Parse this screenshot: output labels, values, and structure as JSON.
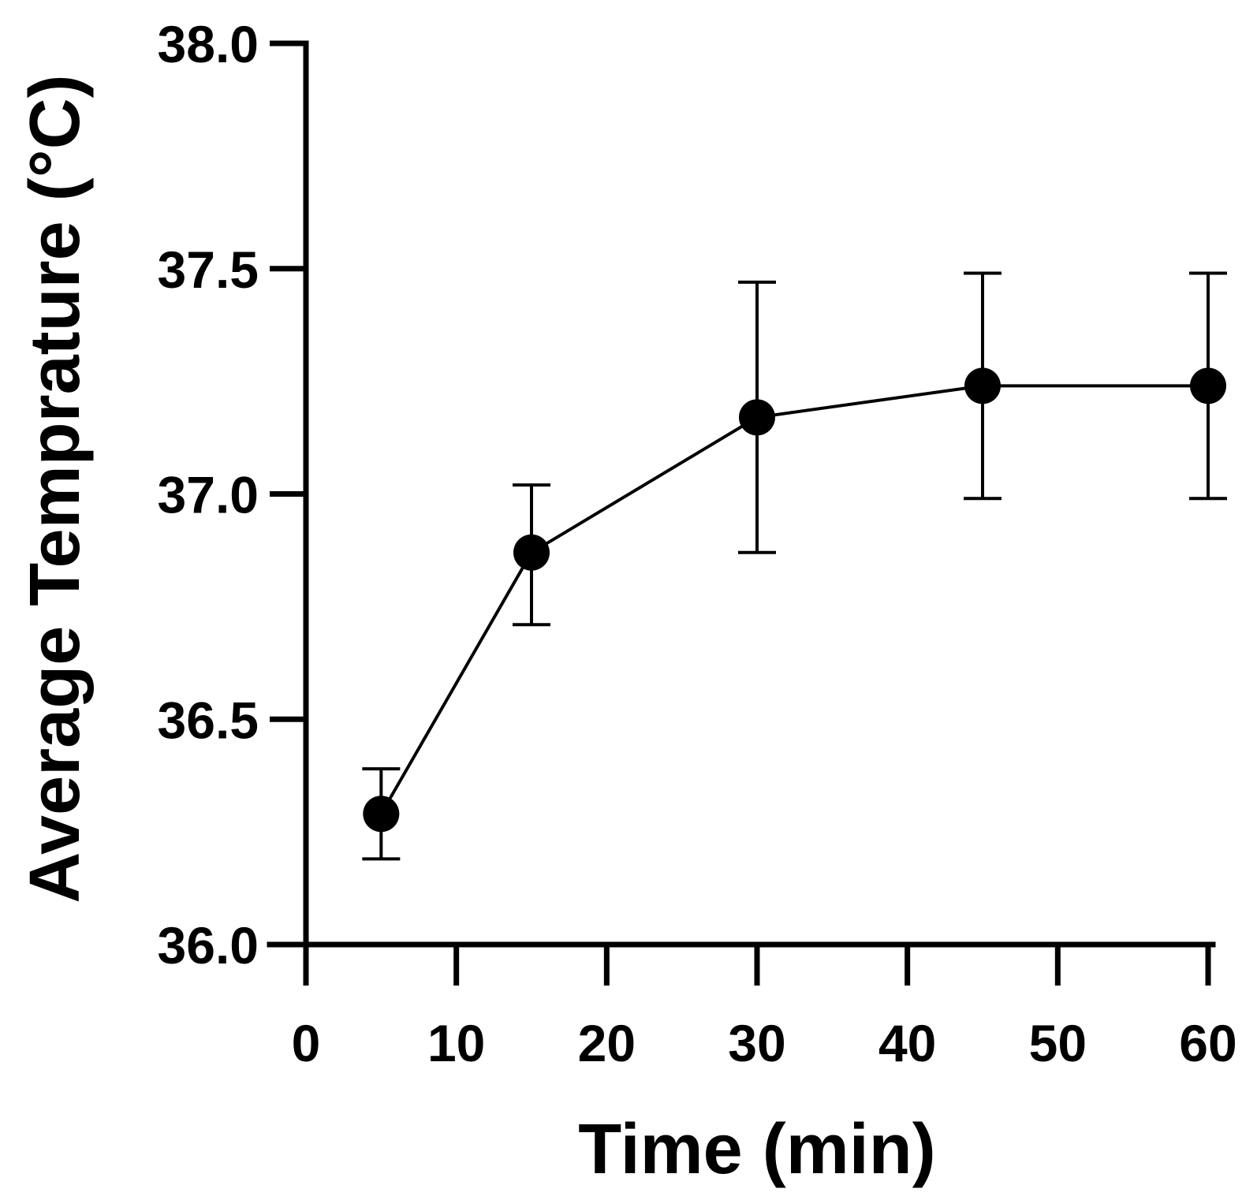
{
  "chart_data": {
    "type": "line",
    "title": "",
    "xlabel": "Time (min)",
    "ylabel": "Average Temprature (°C)",
    "xlim": [
      0,
      60
    ],
    "ylim": [
      36.0,
      38.0
    ],
    "x_ticks": [
      0,
      10,
      20,
      30,
      40,
      50,
      60
    ],
    "x_tick_labels": [
      "0",
      "10",
      "20",
      "30",
      "40",
      "50",
      "60"
    ],
    "y_ticks": [
      36.0,
      36.5,
      37.0,
      37.5,
      38.0
    ],
    "y_tick_labels": [
      "36.0",
      "36.5",
      "37.0",
      "37.5",
      "38.0"
    ],
    "grid": false,
    "legend": "none",
    "series": [
      {
        "name": "Average Temperature",
        "color": "#000000",
        "marker": "filled-circle",
        "x": [
          5,
          15,
          30,
          45,
          60
        ],
        "y": [
          36.29,
          36.87,
          37.17,
          37.24,
          37.24
        ],
        "error_low": [
          36.19,
          36.71,
          36.87,
          36.99,
          36.99
        ],
        "error_high": [
          36.39,
          37.02,
          37.47,
          37.49,
          37.49
        ]
      }
    ]
  }
}
